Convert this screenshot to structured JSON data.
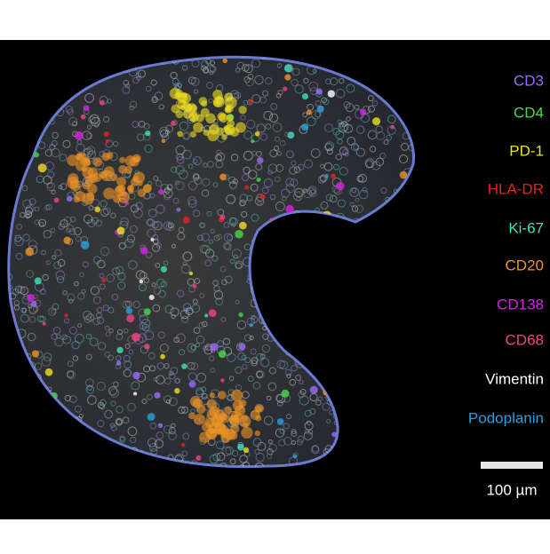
{
  "legend": [
    {
      "label": "CD3",
      "color": "#9c6cff"
    },
    {
      "label": "CD4",
      "color": "#46dc46"
    },
    {
      "label": "PD-1",
      "color": "#f0e020"
    },
    {
      "label": "HLA-DR",
      "color": "#e02424"
    },
    {
      "label": "Ki-67",
      "color": "#44e0c0"
    },
    {
      "label": "CD20",
      "color": "#f09424"
    },
    {
      "label": "CD138",
      "color": "#d424e4"
    },
    {
      "label": "CD68",
      "color": "#f04484"
    },
    {
      "label": "Vimentin",
      "color": "#ffffff"
    },
    {
      "label": "Podoplanin",
      "color": "#2aa0e0"
    }
  ],
  "scale_bar": {
    "label": "100 µm"
  }
}
